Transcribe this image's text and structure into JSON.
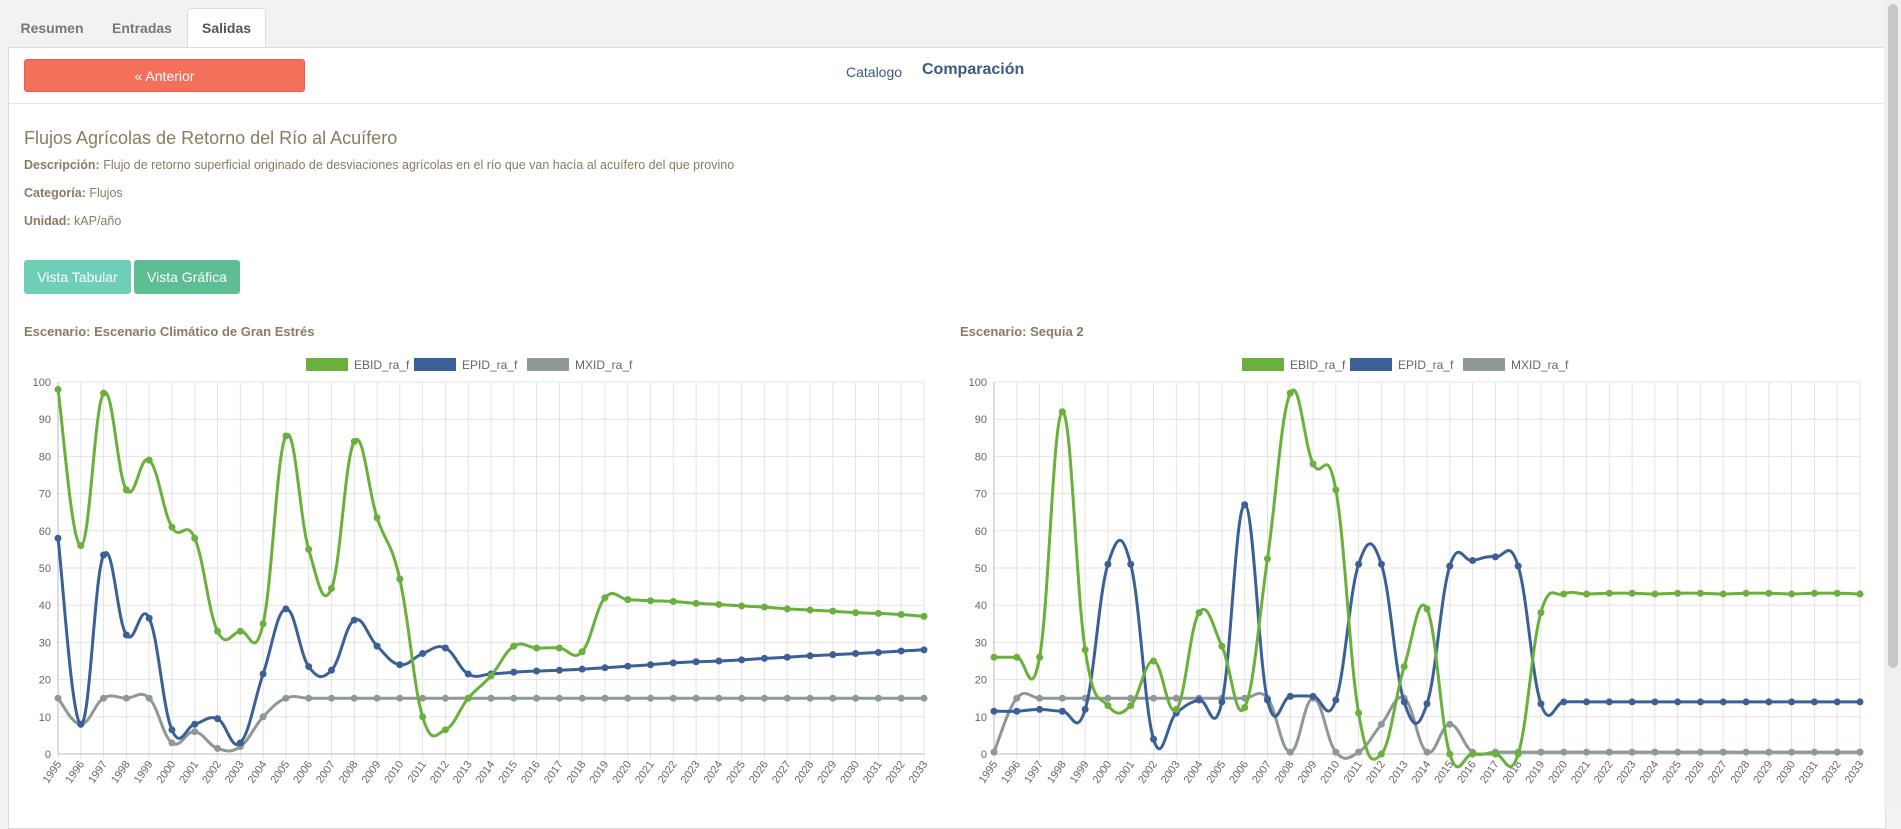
{
  "tabs": [
    "Resumen",
    "Entradas",
    "Salidas"
  ],
  "nav": {
    "back_label": "« Anterior",
    "catalog": "Catalogo",
    "compare": "Comparación"
  },
  "header": {
    "title": "Flujos Agrícolas de Retorno del Río al Acuífero",
    "desc_label": "Descripción:",
    "desc_value": "Flujo de retorno superficial originado de desviaciones agrícolas en el río que van hacía al acuífero del que provino",
    "cat_label": "Categoría:",
    "cat_value": "Flujos",
    "unit_label": "Unidad:",
    "unit_value": "kAP/año"
  },
  "view_buttons": {
    "table": "Vista Tabular",
    "graph": "Vista Gráfica"
  },
  "colors": {
    "green": "#6ab03c",
    "blue": "#3b5f97",
    "gray": "#8e9898",
    "anterior": "#f4705a",
    "tabular": "#6fcfb6",
    "grafica": "#5dbe93"
  },
  "chart_data": [
    {
      "type": "line",
      "title": "Escenario: Escenario Climático de Gran Estrés",
      "ylim": [
        0,
        100
      ],
      "yticks": [
        0,
        10,
        20,
        30,
        40,
        50,
        60,
        70,
        80,
        90,
        100
      ],
      "legend_position": "top-center",
      "grid": true,
      "x": [
        "1995",
        "1996",
        "1997",
        "1998",
        "1999",
        "2000",
        "2001",
        "2002",
        "2003",
        "2004",
        "2005",
        "2006",
        "2007",
        "2008",
        "2009",
        "2010",
        "2011",
        "2012",
        "2013",
        "2014",
        "2015",
        "2016",
        "2017",
        "2018",
        "2019",
        "2020",
        "2021",
        "2022",
        "2023",
        "2024",
        "2025",
        "2026",
        "2027",
        "2028",
        "2029",
        "2030",
        "2031",
        "2032",
        "2033"
      ],
      "series": [
        {
          "name": "EBID_ra_f",
          "color": "#6ab03c",
          "values": [
            98,
            56,
            97,
            71,
            79,
            61,
            58,
            33,
            33,
            35,
            85.5,
            55,
            44.5,
            84,
            63.5,
            47,
            10,
            6.5,
            15,
            21,
            29,
            28.5,
            28.5,
            27.5,
            42,
            41.5,
            41.2,
            41,
            40.5,
            40.2,
            39.8,
            39.5,
            39,
            38.7,
            38.4,
            38,
            37.8,
            37.5,
            37
          ]
        },
        {
          "name": "EPID_ra_f",
          "color": "#3b5f97",
          "values": [
            58,
            8,
            53.5,
            32,
            36.5,
            6.5,
            8,
            9.5,
            3,
            21.5,
            39,
            23.5,
            22.5,
            36,
            29,
            24,
            27,
            28.5,
            21.5,
            21.5,
            22,
            22.3,
            22.5,
            22.8,
            23.2,
            23.6,
            24,
            24.5,
            24.8,
            25,
            25.3,
            25.7,
            26,
            26.4,
            26.7,
            27,
            27.3,
            27.7,
            28
          ]
        },
        {
          "name": "MXID_ra_f",
          "color": "#8e9898",
          "values": [
            15,
            8,
            15,
            15,
            15,
            3,
            6,
            1.5,
            2,
            10,
            15,
            15,
            15,
            15,
            15,
            15,
            15,
            15,
            15,
            15,
            15,
            15,
            15,
            15,
            15,
            15,
            15,
            15,
            15,
            15,
            15,
            15,
            15,
            15,
            15,
            15,
            15,
            15,
            15
          ]
        }
      ]
    },
    {
      "type": "line",
      "title": "Escenario: Sequia 2",
      "ylim": [
        0,
        100
      ],
      "yticks": [
        0,
        10,
        20,
        30,
        40,
        50,
        60,
        70,
        80,
        90,
        100
      ],
      "legend_position": "top-center",
      "grid": true,
      "x": [
        "1995",
        "1996",
        "1997",
        "1998",
        "1999",
        "2000",
        "2001",
        "2002",
        "2003",
        "2004",
        "2005",
        "2006",
        "2007",
        "2008",
        "2009",
        "2010",
        "2011",
        "2012",
        "2013",
        "2014",
        "2015",
        "2016",
        "2017",
        "2018",
        "2019",
        "2020",
        "2021",
        "2022",
        "2023",
        "2024",
        "2025",
        "2026",
        "2027",
        "2028",
        "2029",
        "2030",
        "2031",
        "2032",
        "2033"
      ],
      "series": [
        {
          "name": "EBID_ra_f",
          "color": "#6ab03c",
          "values": [
            26,
            26,
            26,
            92,
            28,
            13,
            13,
            25,
            12,
            38,
            29,
            12.5,
            52.5,
            97,
            78,
            71,
            11,
            0,
            23.5,
            39,
            0,
            0,
            0,
            0,
            38,
            43,
            43,
            43.2,
            43.2,
            43,
            43.2,
            43.2,
            43,
            43.2,
            43.2,
            43,
            43.2,
            43.2,
            43
          ]
        },
        {
          "name": "EPID_ra_f",
          "color": "#3b5f97",
          "values": [
            11.5,
            11.5,
            12,
            11.5,
            12,
            51,
            51,
            4,
            11,
            14.5,
            14,
            67,
            14.5,
            15.5,
            15.5,
            14.5,
            51,
            51,
            14,
            13.5,
            50.5,
            52,
            53,
            50.5,
            13.5,
            14,
            14,
            14,
            14,
            14,
            14,
            14,
            14,
            14,
            14,
            14,
            14,
            14,
            14
          ]
        },
        {
          "name": "MXID_ra_f",
          "color": "#8e9898",
          "values": [
            0.5,
            15,
            15,
            15,
            15,
            15,
            15,
            15,
            15,
            15,
            15,
            15,
            15,
            0.5,
            15,
            0.5,
            0.5,
            8,
            15,
            0.5,
            8,
            0.5,
            0.5,
            0.5,
            0.5,
            0.5,
            0.5,
            0.5,
            0.5,
            0.5,
            0.5,
            0.5,
            0.5,
            0.5,
            0.5,
            0.5,
            0.5,
            0.5,
            0.5
          ]
        }
      ]
    }
  ]
}
